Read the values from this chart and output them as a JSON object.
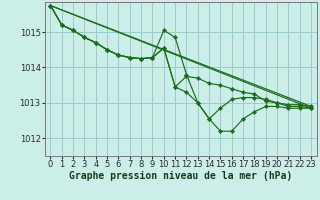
{
  "background_color": "#cceee8",
  "grid_color": "#99cccc",
  "line_color": "#1a6e1a",
  "marker_color": "#1a6e1a",
  "xlabel": "Graphe pression niveau de la mer (hPa)",
  "xlabel_fontsize": 7,
  "tick_fontsize": 6,
  "xlim": [
    -0.5,
    23.5
  ],
  "ylim": [
    1011.5,
    1015.85
  ],
  "yticks": [
    1012,
    1013,
    1014,
    1015
  ],
  "xticks": [
    0,
    1,
    2,
    3,
    4,
    5,
    6,
    7,
    8,
    9,
    10,
    11,
    12,
    13,
    14,
    15,
    16,
    17,
    18,
    19,
    20,
    21,
    22,
    23
  ],
  "series": [
    {
      "x": [
        0,
        1,
        2,
        3,
        4,
        5,
        6,
        7,
        8,
        9,
        10,
        11,
        12,
        13,
        14,
        15,
        16,
        17,
        18,
        19,
        20,
        21,
        22,
        23
      ],
      "y": [
        1015.75,
        1015.2,
        1015.05,
        1014.85,
        1014.7,
        1014.5,
        1014.35,
        1014.28,
        1014.25,
        1014.28,
        1014.55,
        1013.45,
        1013.75,
        1013.7,
        1013.55,
        1013.5,
        1013.4,
        1013.3,
        1013.25,
        1013.05,
        1013.0,
        1012.95,
        1012.95,
        1012.9
      ],
      "has_markers": true
    },
    {
      "x": [
        0,
        1,
        2,
        3,
        4,
        5,
        6,
        7,
        8,
        9,
        10,
        11,
        12,
        13,
        14,
        15,
        16,
        17,
        18,
        19,
        20,
        21,
        22,
        23
      ],
      "y": [
        1015.75,
        1015.2,
        1015.05,
        1014.85,
        1014.7,
        1014.5,
        1014.35,
        1014.28,
        1014.25,
        1014.28,
        1014.55,
        1013.45,
        1013.3,
        1013.0,
        1012.55,
        1012.85,
        1013.1,
        1013.15,
        1013.15,
        1013.1,
        1013.0,
        1012.9,
        1012.9,
        1012.85
      ],
      "has_markers": true
    },
    {
      "x": [
        0,
        1,
        2,
        3,
        4,
        5,
        6,
        7,
        8,
        9,
        10,
        11,
        12,
        13,
        14,
        15,
        16,
        17,
        18,
        19,
        20,
        21,
        22,
        23
      ],
      "y": [
        1015.75,
        1015.2,
        1015.05,
        1014.85,
        1014.7,
        1014.5,
        1014.35,
        1014.28,
        1014.25,
        1014.28,
        1015.05,
        1014.85,
        1013.8,
        1013.0,
        1012.55,
        1012.2,
        1012.2,
        1012.55,
        1012.75,
        1012.9,
        1012.9,
        1012.85,
        1012.85,
        1012.85
      ],
      "has_markers": true
    },
    {
      "x": [
        0,
        23
      ],
      "y": [
        1015.75,
        1012.85
      ],
      "has_markers": false
    },
    {
      "x": [
        0,
        23
      ],
      "y": [
        1015.75,
        1012.9
      ],
      "has_markers": false
    }
  ]
}
